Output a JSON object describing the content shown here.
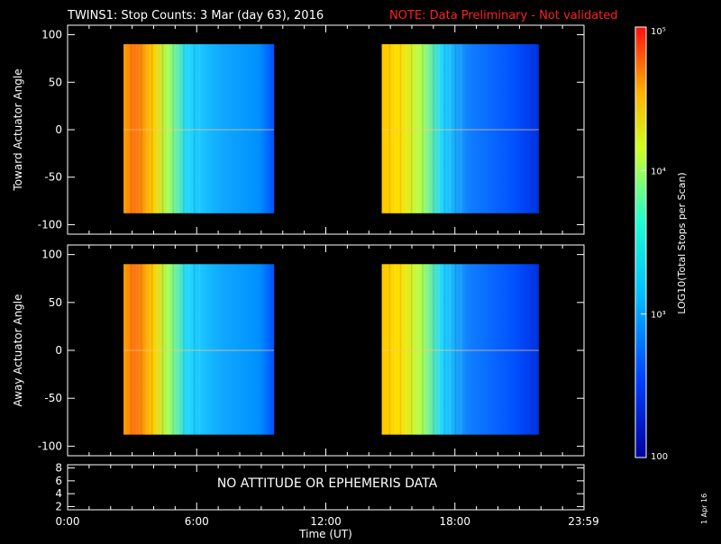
{
  "header": {
    "title": "TWINS1: Stop Counts:  3 Mar (day  63), 2016",
    "note": "NOTE: Data Preliminary - Not validated"
  },
  "colors": {
    "background": "#000000",
    "axes": "#ffffff",
    "note_text": "#ff2020"
  },
  "colorbar": {
    "label": "LOG10(Total Stops per Scan)",
    "ticks": [
      "10⁵",
      "10⁴",
      "10³",
      "100"
    ],
    "scale": "log",
    "range": [
      100,
      100000
    ],
    "colormap": "rainbow (blue→cyan→yellow→red)"
  },
  "no_data_message": "NO ATTITUDE OR EPHEMERIS DATA",
  "stamp": "1 Apr 16",
  "chart_data": [
    {
      "type": "heatmap",
      "ylabel": "Toward Actuator Angle",
      "ylim": [
        -110,
        110
      ],
      "yticks": [
        "100",
        "50",
        "0",
        "-50",
        "-100"
      ],
      "xlim": [
        0,
        24
      ],
      "segments": [
        {
          "x_start": 2.6,
          "x_end": 9.6,
          "y_range": [
            -88,
            90
          ],
          "hot_side": "left"
        },
        {
          "x_start": 14.6,
          "x_end": 21.9,
          "y_range": [
            -88,
            90
          ],
          "hot_side": "left"
        }
      ]
    },
    {
      "type": "heatmap",
      "ylabel": "Away Actuator Angle",
      "ylim": [
        -110,
        110
      ],
      "yticks": [
        "100",
        "50",
        "0",
        "-50",
        "-100"
      ],
      "xlim": [
        0,
        24
      ],
      "segments": [
        {
          "x_start": 2.6,
          "x_end": 9.6,
          "y_range": [
            -88,
            90
          ],
          "hot_side": "left"
        },
        {
          "x_start": 14.6,
          "x_end": 21.9,
          "y_range": [
            -88,
            90
          ],
          "hot_side": "left"
        }
      ]
    },
    {
      "type": "line",
      "ylim": [
        1.5,
        8.5
      ],
      "yticks": [
        "8",
        "6",
        "4",
        "2"
      ],
      "xlabel": "Time (UT)",
      "xticks": [
        "0:00",
        "6:00",
        "12:00",
        "18:00",
        "23:59"
      ],
      "series": []
    }
  ]
}
